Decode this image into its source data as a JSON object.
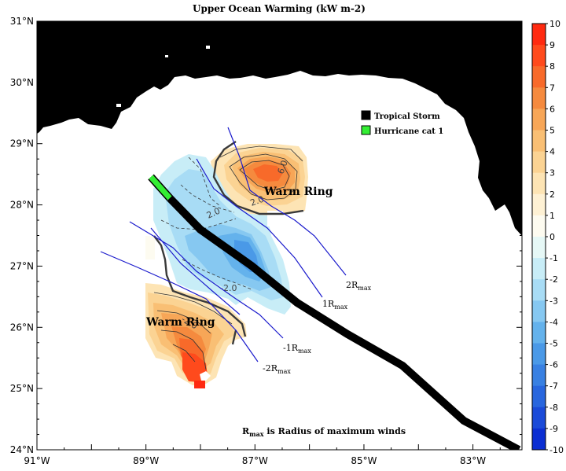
{
  "title": "Upper Ocean Warming (kW m-2)",
  "axes": {
    "lat_labels": [
      "31°N",
      "30°N",
      "29°N",
      "28°N",
      "27°N",
      "26°N",
      "25°N",
      "24°N"
    ],
    "lon_labels": [
      "91°W",
      "89°W",
      "87°W",
      "85°W",
      "83°W"
    ]
  },
  "legend": {
    "tropical_storm": "Tropical Storm",
    "hurricane": "Hurricane cat 1",
    "tropical_storm_color": "#000000",
    "hurricane_color": "#33ee33"
  },
  "annotations": {
    "warm_ring_1": "Warm Ring",
    "warm_ring_2": "Warm Ring",
    "r2_main": "2R",
    "r2_sub": "max",
    "r1_main": "1R",
    "r1_sub": "max",
    "rm1_main": "-1R",
    "rm1_sub": "max",
    "rm2_main": "-2R",
    "rm2_sub": "max",
    "note_main": "R",
    "note_sub": "max",
    "note_rest": " is Radius of maximum winds"
  },
  "contour_labels": {
    "c1": "6.0",
    "c2": "2.0",
    "c3": "-2.0",
    "c4": "-2.0",
    "c5": "2.0"
  },
  "colorbar": {
    "labels": [
      "10",
      "9",
      "8",
      "7",
      "6",
      "5",
      "4",
      "3",
      "2",
      "1",
      "0",
      "-1",
      "-2",
      "-3",
      "-4",
      "-5",
      "-6",
      "-7",
      "-8",
      "-9",
      "-10"
    ],
    "colors": [
      "#ff2a10",
      "#ff4a1c",
      "#f86a2a",
      "#f58a3e",
      "#f7a657",
      "#f9bf74",
      "#fbd393",
      "#fde4b4",
      "#fef1d4",
      "#fdfbf0",
      "#e6f8f6",
      "#c8edf7",
      "#a8dcf5",
      "#86c8f1",
      "#64b2ec",
      "#4a99e7",
      "#3880e2",
      "#2866de",
      "#1a4ad8",
      "#0b2ed2"
    ]
  }
}
